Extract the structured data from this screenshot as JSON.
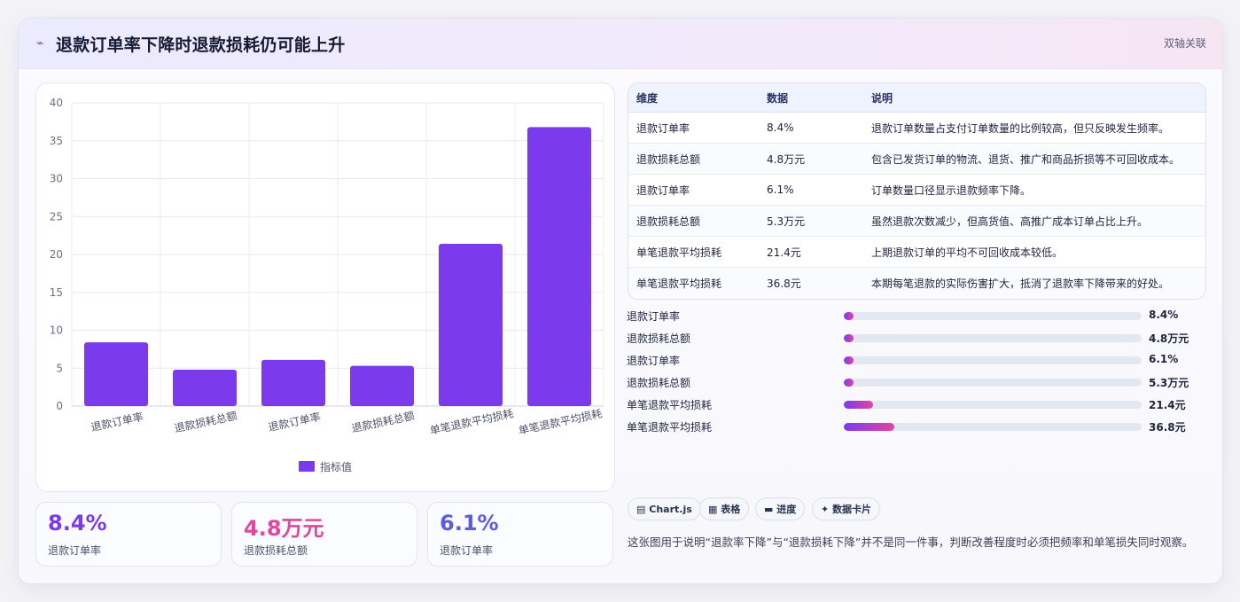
{
  "header": {
    "icon": "chart-line-icon",
    "title": "退款订单率下降时退款损耗仍可能上升",
    "tag": "双轴关联"
  },
  "chart_data": {
    "type": "bar",
    "categories": [
      "退款订单率",
      "退款损耗总额",
      "退款订单率",
      "退款损耗总额",
      "单笔退款平均损耗",
      "单笔退款平均损耗"
    ],
    "series": [
      {
        "name": "指标值",
        "values": [
          8.4,
          4.8,
          6.1,
          5.3,
          21.4,
          36.8
        ],
        "color": "#7c3aed"
      }
    ],
    "yticks": [
      0,
      5,
      10,
      15,
      20,
      25,
      30,
      35,
      40
    ],
    "ylim": [
      0,
      40
    ],
    "grid": true,
    "legend": "bottom"
  },
  "stats": [
    {
      "value": "8.4%",
      "label": "退款订单率",
      "color": "#7c3aed"
    },
    {
      "value": "4.8万元",
      "label": "退款损耗总额",
      "color": "#e0479e"
    },
    {
      "value": "6.1%",
      "label": "退款订单率",
      "color": "#5b5ce0"
    }
  ],
  "table": {
    "headers": [
      "维度",
      "数据",
      "说明"
    ],
    "rows": [
      [
        "退款订单率",
        "8.4%",
        "退款订单数量占支付订单数量的比例较高，但只反映发生频率。"
      ],
      [
        "退款损耗总额",
        "4.8万元",
        "包含已发货订单的物流、退货、推广和商品折损等不可回收成本。"
      ],
      [
        "退款订单率",
        "6.1%",
        "订单数量口径显示退款频率下降。"
      ],
      [
        "退款损耗总额",
        "5.3万元",
        "虽然退款次数减少，但高货值、高推广成本订单占比上升。"
      ],
      [
        "单笔退款平均损耗",
        "21.4元",
        "上期退款订单的平均不可回收成本较低。"
      ],
      [
        "单笔退款平均损耗",
        "36.8元",
        "本期每笔退款的实际伤害扩大，抵消了退款率下降带来的好处。"
      ]
    ]
  },
  "progress": [
    {
      "label": "退款订单率",
      "value": "8.4%",
      "fraction": 0.034
    },
    {
      "label": "退款损耗总额",
      "value": "4.8万元",
      "fraction": 0.034
    },
    {
      "label": "退款订单率",
      "value": "6.1%",
      "fraction": 0.034
    },
    {
      "label": "退款损耗总额",
      "value": "5.3万元",
      "fraction": 0.034
    },
    {
      "label": "单笔退款平均损耗",
      "value": "21.4元",
      "fraction": 0.098
    },
    {
      "label": "单笔退款平均损耗",
      "value": "36.8元",
      "fraction": 0.17
    }
  ],
  "chips": [
    {
      "icon": "chart-icon",
      "glyph": "▤",
      "label": "Chart.js"
    },
    {
      "icon": "table-icon",
      "glyph": "▦",
      "label": "表格"
    },
    {
      "icon": "progress-icon",
      "glyph": "▬",
      "label": "进度"
    },
    {
      "icon": "sparkle-icon",
      "glyph": "✦",
      "label": "数据卡片"
    }
  ],
  "note": "这张图用于说明“退款率下降”与“退款损耗下降”并不是同一件事，判断改善程度时必须把频率和单笔损失同时观察。"
}
